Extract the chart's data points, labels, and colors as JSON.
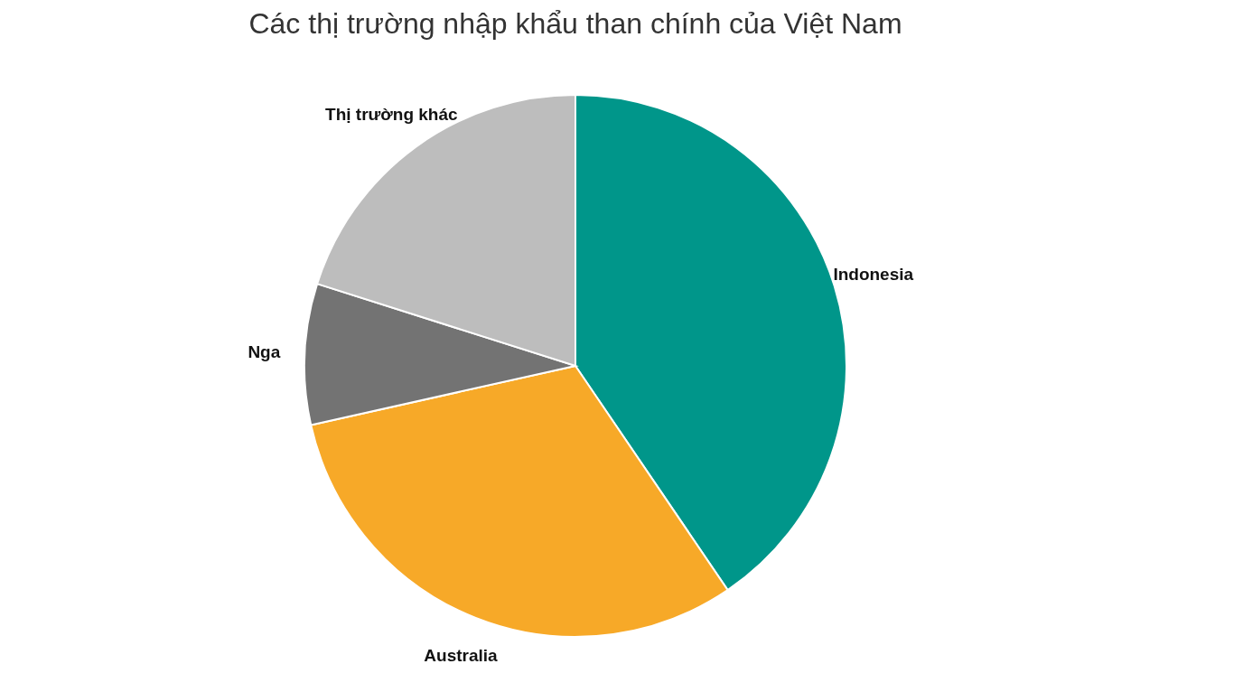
{
  "chart_data": {
    "type": "pie",
    "title": "Các thị trường nhập khẩu than chính của Việt Nam",
    "categories": [
      "Indonesia",
      "Australia",
      "Nga",
      "Thị trường khác"
    ],
    "values": [
      40.5,
      31,
      8.4,
      20.1
    ],
    "colors": [
      "#00968a",
      "#f7a928",
      "#737373",
      "#bdbdbd"
    ],
    "legend": false
  }
}
